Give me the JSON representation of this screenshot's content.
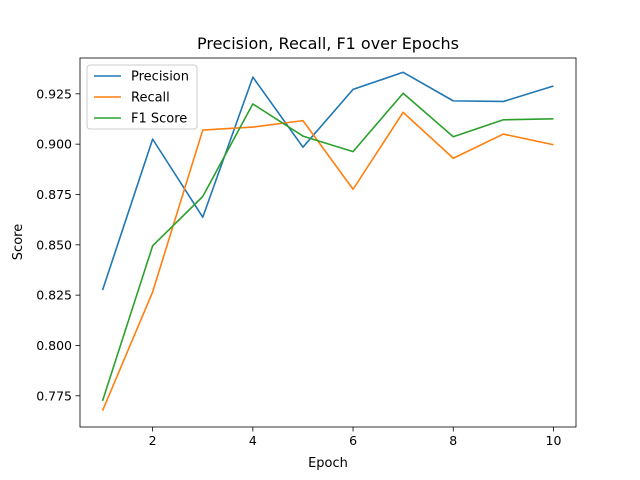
{
  "chart_data": {
    "type": "line",
    "title": "Precision, Recall, F1 over Epochs",
    "xlabel": "Epoch",
    "ylabel": "Score",
    "x": [
      1,
      2,
      3,
      4,
      5,
      6,
      7,
      8,
      9,
      10
    ],
    "xlim": [
      0.55,
      10.45
    ],
    "ylim": [
      0.7595,
      0.9428
    ],
    "xticks": [
      2,
      4,
      6,
      8,
      10
    ],
    "yticks": [
      0.775,
      0.8,
      0.825,
      0.85,
      0.875,
      0.9,
      0.925
    ],
    "xtick_labels": [
      "2",
      "4",
      "6",
      "8",
      "10"
    ],
    "ytick_labels": [
      "0.775",
      "0.800",
      "0.825",
      "0.850",
      "0.875",
      "0.900",
      "0.925"
    ],
    "grid": false,
    "legend_position": "top-left",
    "series": [
      {
        "name": "Precision",
        "color": "#1f77b4",
        "values": [
          0.8275,
          0.9025,
          0.8637,
          0.9333,
          0.8985,
          0.9272,
          0.9357,
          0.9215,
          0.9212,
          0.9289
        ]
      },
      {
        "name": "Recall",
        "color": "#ff7f0e",
        "values": [
          0.7676,
          0.8266,
          0.907,
          0.9085,
          0.9117,
          0.8776,
          0.9158,
          0.893,
          0.905,
          0.8997
        ]
      },
      {
        "name": "F1 Score",
        "color": "#2ca02c",
        "values": [
          0.7725,
          0.8495,
          0.874,
          0.92,
          0.904,
          0.8963,
          0.9253,
          0.9037,
          0.9121,
          0.9126
        ]
      }
    ]
  }
}
